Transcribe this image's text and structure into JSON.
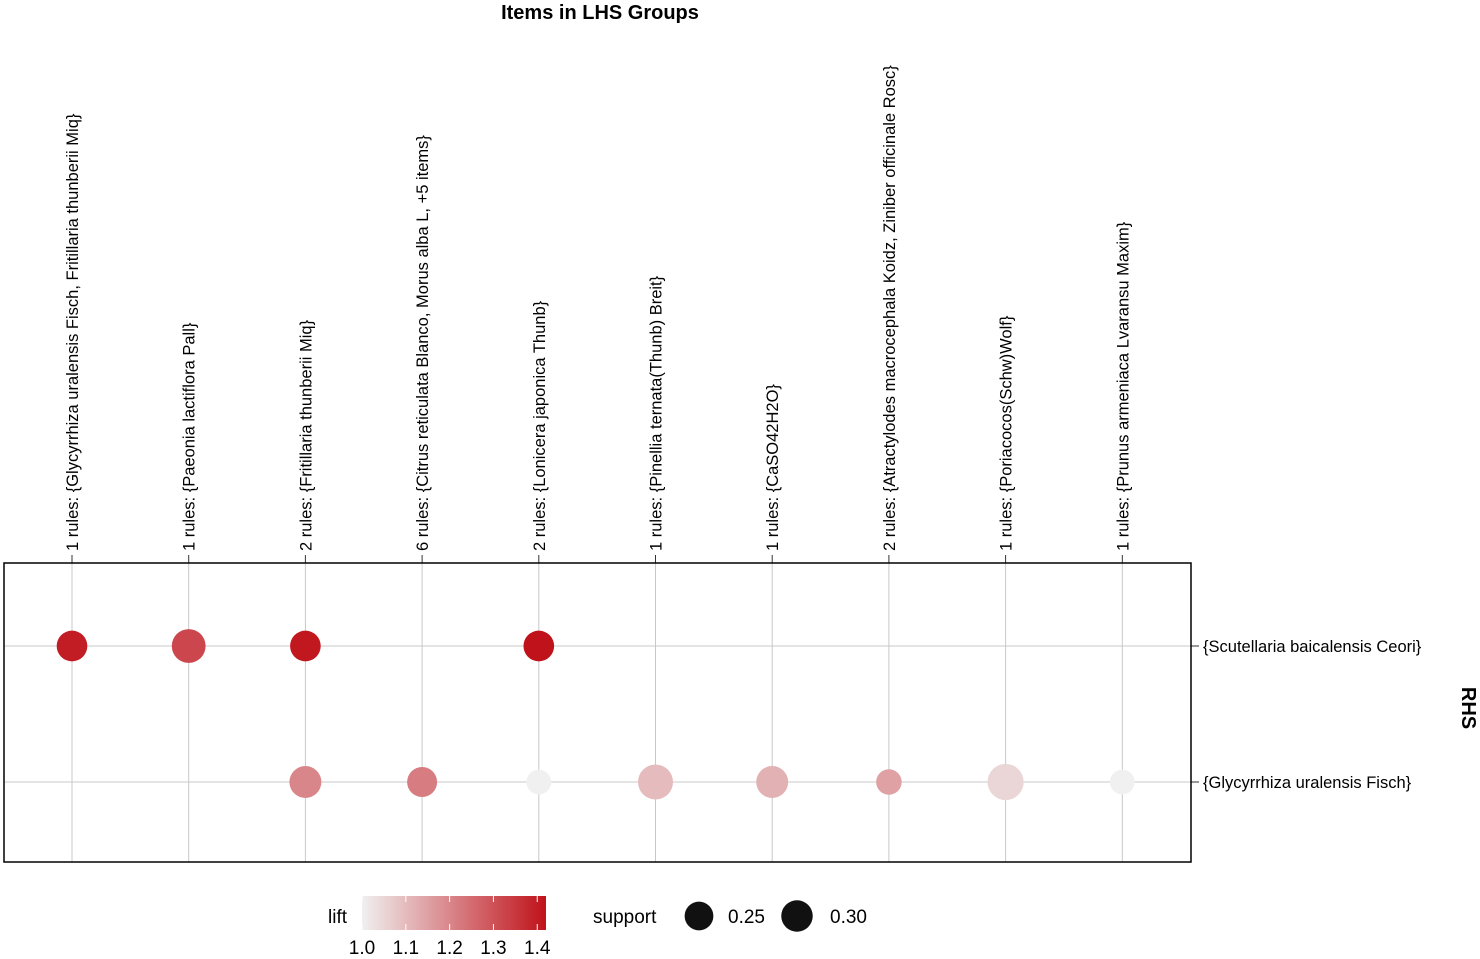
{
  "chart_data": {
    "type": "scatter",
    "title": "Items in LHS Groups",
    "y_axis_title": "RHS",
    "lhs_groups": [
      "1 rules: {Glycyrrhiza uralensis Fisch, Fritillaria thunberii Miq}",
      "1 rules: {Paeonia lactiflora Pall}",
      "2 rules: {Fritillaria thunberii Miq}",
      "6 rules: {Citrus reticulata Blanco, Morus alba L, +5 items}",
      "2 rules: {Lonicera japonica Thunb}",
      "1 rules: {Pinellia ternata(Thunb) Breit}",
      "1 rules: {CaSO42H2O}",
      "2 rules: {Atractylodes macrocephala Koidz, Ziniber officinale Rosc}",
      "1 rules: {Poriacocos(Schw)Wolf}",
      "1 rules: {Prunus armeniaca Lvaransu Maxim}"
    ],
    "rhs_items": [
      "{Scutellaria baicalensis Ceori}",
      "{Glycyrrhiza uralensis Fisch}"
    ],
    "points": [
      {
        "lhs": 0,
        "rhs": 0,
        "support": 0.23,
        "lift": 1.4
      },
      {
        "lhs": 1,
        "rhs": 0,
        "support": 0.28,
        "lift": 1.32
      },
      {
        "lhs": 2,
        "rhs": 0,
        "support": 0.23,
        "lift": 1.41
      },
      {
        "lhs": 4,
        "rhs": 0,
        "support": 0.23,
        "lift": 1.42
      },
      {
        "lhs": 2,
        "rhs": 1,
        "support": 0.25,
        "lift": 1.2
      },
      {
        "lhs": 3,
        "rhs": 1,
        "support": 0.22,
        "lift": 1.22
      },
      {
        "lhs": 4,
        "rhs": 1,
        "support": 0.15,
        "lift": 1.0
      },
      {
        "lhs": 5,
        "rhs": 1,
        "support": 0.3,
        "lift": 1.1
      },
      {
        "lhs": 6,
        "rhs": 1,
        "support": 0.25,
        "lift": 1.12
      },
      {
        "lhs": 7,
        "rhs": 1,
        "support": 0.16,
        "lift": 1.15
      },
      {
        "lhs": 8,
        "rhs": 1,
        "support": 0.32,
        "lift": 1.05
      },
      {
        "lhs": 9,
        "rhs": 1,
        "support": 0.15,
        "lift": 1.0
      }
    ],
    "lift_legend": {
      "label": "lift",
      "ticks": [
        "1.0",
        "1.1",
        "1.2",
        "1.3",
        "1.4"
      ],
      "range": [
        1.0,
        1.42
      ],
      "colors": [
        "#f0f0f0",
        "#c0121a"
      ]
    },
    "support_legend": {
      "label": "support",
      "entries": [
        {
          "label": "0.25",
          "value": 0.25
        },
        {
          "label": "0.30",
          "value": 0.3
        }
      ]
    }
  }
}
